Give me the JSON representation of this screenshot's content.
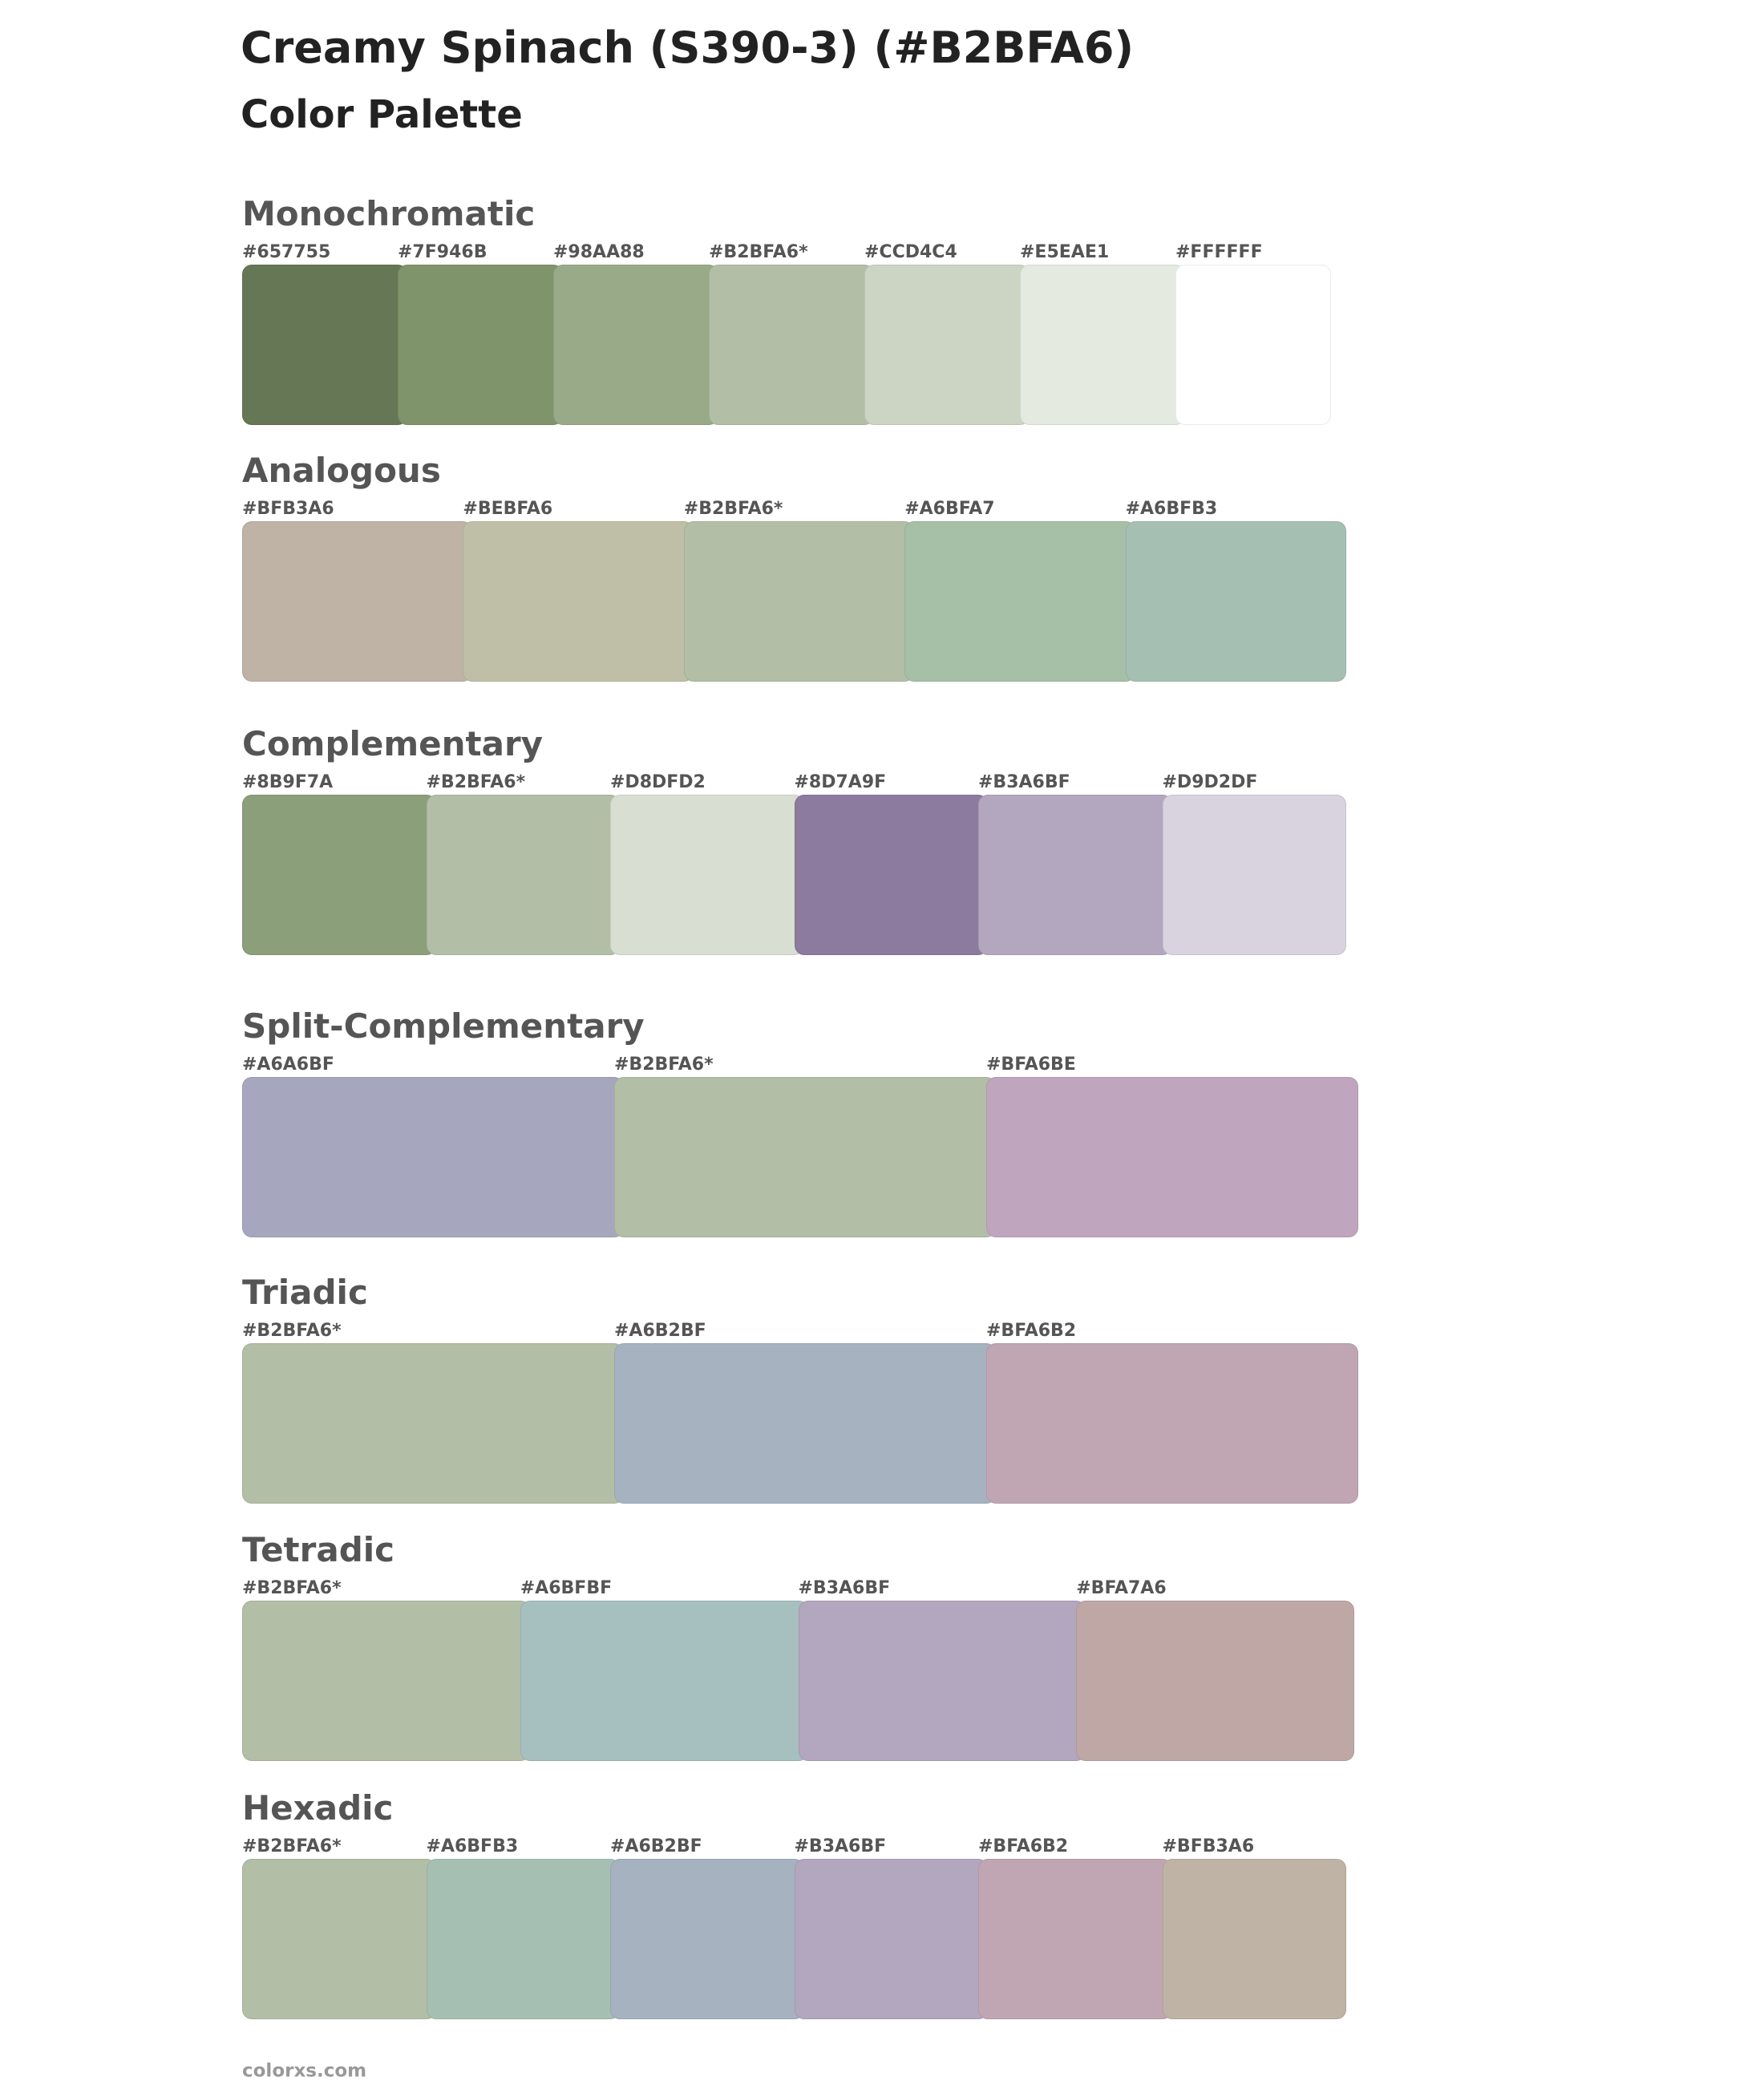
{
  "header": {
    "title": "Creamy Spinach (S390-3) (#B2BFA6)",
    "subtitle": "Color Palette"
  },
  "sections": [
    {
      "name": "Monochromatic",
      "swatches": [
        "#657755",
        "#7F946B",
        "#98AA88",
        "#B2BFA6*",
        "#CCD4C4",
        "#E5EAE1",
        "#FFFFFF"
      ]
    },
    {
      "name": "Analogous",
      "swatches": [
        "#BFB3A6",
        "#BEBFA6",
        "#B2BFA6*",
        "#A6BFA7",
        "#A6BFB3"
      ]
    },
    {
      "name": "Complementary",
      "swatches": [
        "#8B9F7A",
        "#B2BFA6*",
        "#D8DFD2",
        "#8D7A9F",
        "#B3A6BF",
        "#D9D2DF"
      ]
    },
    {
      "name": "Split-Complementary",
      "swatches": [
        "#A6A6BF",
        "#B2BFA6*",
        "#BFA6BE"
      ]
    },
    {
      "name": "Triadic",
      "swatches": [
        "#B2BFA6*",
        "#A6B2BF",
        "#BFA6B2"
      ]
    },
    {
      "name": "Tetradic",
      "swatches": [
        "#B2BFA6*",
        "#A6BFBF",
        "#B3A6BF",
        "#BFA7A6"
      ]
    },
    {
      "name": "Hexadic",
      "swatches": [
        "#B2BFA6*",
        "#A6BFB3",
        "#A6B2BF",
        "#B3A6BF",
        "#BFA6B2",
        "#BFB3A6"
      ]
    }
  ],
  "footer": "colorxs.com"
}
